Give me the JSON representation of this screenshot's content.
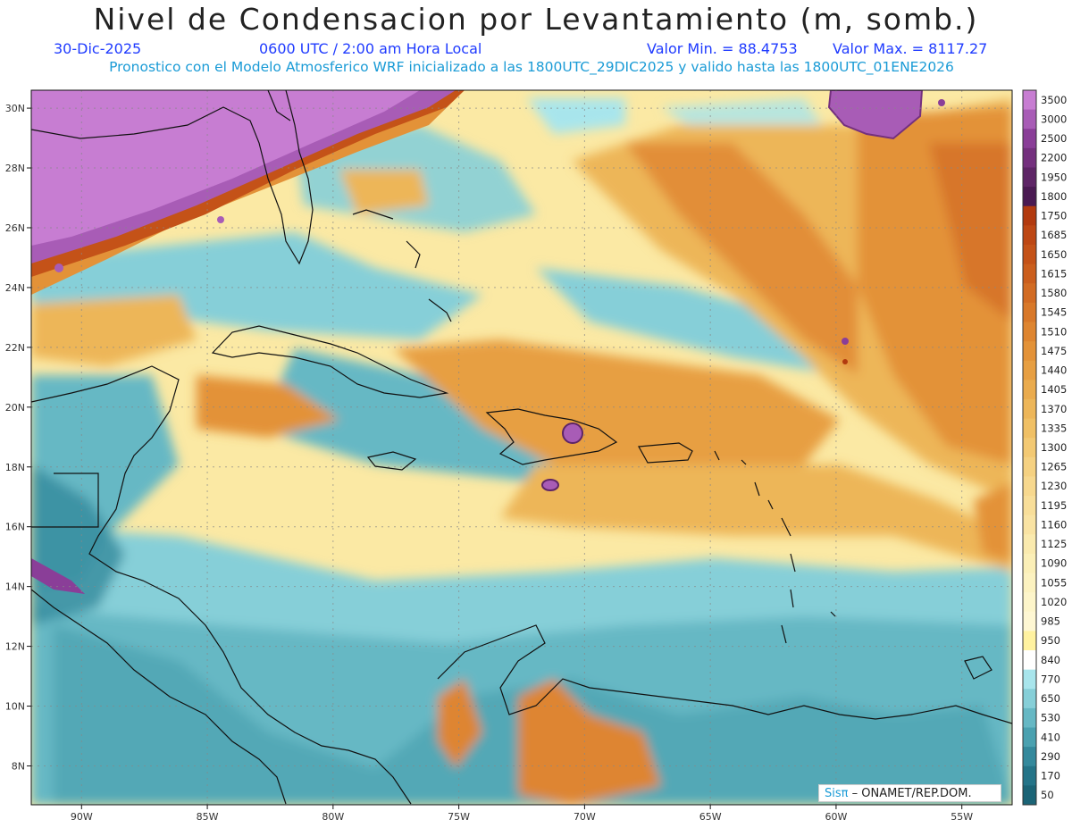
{
  "header": {
    "title": "Nivel de Condensacion por Levantamiento (m, somb.)",
    "date": "30-Dic-2025",
    "time": "0600 UTC / 2:00 am Hora Local",
    "min_label": "Valor Min. = 88.4753",
    "max_label": "Valor Max. = 8117.27",
    "subtitle": "Pronostico con el Modelo Atmosferico WRF inicializado a las 1800UTC_29DIC2025 y valido hasta las  1800UTC_01ENE2026"
  },
  "map": {
    "lon_range": [
      -92,
      -53
    ],
    "lat_range": [
      6.7,
      30.6
    ],
    "lon_ticks": [
      "90W",
      "85W",
      "80W",
      "75W",
      "70W",
      "65W",
      "60W",
      "55W"
    ],
    "lon_tick_values": [
      -90,
      -85,
      -80,
      -75,
      -70,
      -65,
      -60,
      -55
    ],
    "lat_ticks": [
      "30N",
      "28N",
      "26N",
      "24N",
      "22N",
      "20N",
      "18N",
      "16N",
      "14N",
      "12N",
      "10N",
      "8N"
    ],
    "lat_tick_values": [
      30,
      28,
      26,
      24,
      22,
      20,
      18,
      16,
      14,
      12,
      10,
      8
    ]
  },
  "legend": {
    "levels": [
      "3500",
      "3000",
      "2500",
      "2200",
      "1950",
      "1800",
      "1750",
      "1685",
      "1650",
      "1615",
      "1580",
      "1545",
      "1510",
      "1475",
      "1440",
      "1405",
      "1370",
      "1335",
      "1300",
      "1265",
      "1230",
      "1195",
      "1160",
      "1125",
      "1090",
      "1055",
      "1020",
      "985",
      "950",
      "840",
      "770",
      "650",
      "530",
      "410",
      "290",
      "170",
      "50"
    ],
    "colors": [
      "#c77dd2",
      "#a85cb6",
      "#8a3e98",
      "#74307e",
      "#5e2566",
      "#4a1a52",
      "#b23a0f",
      "#bd4714",
      "#c45218",
      "#cb5e1d",
      "#d26b23",
      "#d87829",
      "#de8530",
      "#e39238",
      "#e79f42",
      "#eaab4d",
      "#edb659",
      "#f0c065",
      "#f3c973",
      "#f5d181",
      "#f7d88e",
      "#f8de99",
      "#f9e3a3",
      "#faeaae",
      "#fbefb7",
      "#fcf2c0",
      "#fdf5ca",
      "#fef7d3",
      "#fff2a0",
      "#ffffff",
      "#a8e5ec",
      "#86cfd8",
      "#66b8c4",
      "#4aa1b0",
      "#34899c",
      "#247488",
      "#1b6476"
    ]
  },
  "credit": {
    "logo": "SisPi",
    "text": "ONAMET/REP.DOM."
  }
}
